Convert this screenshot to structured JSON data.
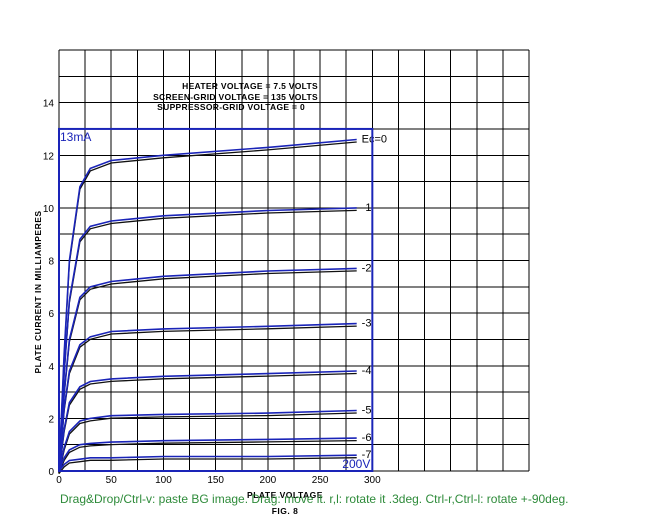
{
  "app": {
    "help_text": "Drag&Drop/Ctrl-v: paste BG image. Drag: move it. r,l: rotate it .3deg. Ctrl-r,Ctrl-l: rotate +-90deg."
  },
  "colors": {
    "overlay_blue": "#1a24b8",
    "help_green": "#2e8b3a",
    "ink": "#111111"
  },
  "chart_data": {
    "type": "line",
    "title": "",
    "caption_lines": [
      "HEATER VOLTAGE = 7.5 VOLTS",
      "SCREEN-GRID VOLTAGE = 135 VOLTS",
      "SUPPRESSOR-GRID VOLTAGE = 0"
    ],
    "figure_label": "FIG. 8",
    "xlabel": "PLATE VOLTAGE",
    "ylabel": "PLATE CURRENT IN MILLIAMPERES",
    "xlim": [
      0,
      450
    ],
    "ylim": [
      0,
      16
    ],
    "x_ticks": [
      "0",
      "50",
      "100",
      "150",
      "200",
      "250",
      "300"
    ],
    "y_ticks": [
      "0",
      "2",
      "4",
      "6",
      "8",
      "10",
      "12",
      "14"
    ],
    "grid": true,
    "series": [
      {
        "name": "Ec = 0",
        "label": "Ec=0",
        "x": [
          0,
          5,
          10,
          20,
          30,
          50,
          100,
          200,
          285
        ],
        "y": [
          0,
          4.5,
          8.0,
          10.8,
          11.5,
          11.8,
          12.0,
          12.3,
          12.6
        ]
      },
      {
        "name": "-1",
        "label": "-1",
        "x": [
          0,
          5,
          10,
          20,
          30,
          50,
          100,
          200,
          285
        ],
        "y": [
          0,
          3.8,
          6.5,
          8.8,
          9.3,
          9.5,
          9.7,
          9.9,
          10.0
        ]
      },
      {
        "name": "-2",
        "label": "-2",
        "x": [
          0,
          5,
          10,
          20,
          30,
          50,
          100,
          200,
          285
        ],
        "y": [
          0,
          3.0,
          5.0,
          6.6,
          7.0,
          7.2,
          7.4,
          7.6,
          7.7
        ]
      },
      {
        "name": "-3",
        "label": "-3",
        "x": [
          0,
          5,
          10,
          20,
          30,
          50,
          100,
          200,
          285
        ],
        "y": [
          0,
          2.4,
          3.8,
          4.8,
          5.1,
          5.3,
          5.4,
          5.5,
          5.6
        ]
      },
      {
        "name": "-4",
        "label": "-4",
        "x": [
          0,
          5,
          10,
          20,
          30,
          50,
          100,
          200,
          285
        ],
        "y": [
          0,
          1.6,
          2.6,
          3.2,
          3.4,
          3.5,
          3.6,
          3.7,
          3.8
        ]
      },
      {
        "name": "-5",
        "label": "-5",
        "x": [
          0,
          5,
          10,
          20,
          30,
          50,
          100,
          200,
          285
        ],
        "y": [
          0,
          0.9,
          1.5,
          1.9,
          2.0,
          2.1,
          2.15,
          2.2,
          2.3
        ]
      },
      {
        "name": "-6",
        "label": "-6",
        "x": [
          0,
          5,
          10,
          20,
          30,
          50,
          100,
          200,
          285
        ],
        "y": [
          0,
          0.5,
          0.8,
          1.0,
          1.05,
          1.1,
          1.15,
          1.2,
          1.25
        ]
      },
      {
        "name": "-7",
        "label": "-7",
        "x": [
          0,
          5,
          10,
          20,
          30,
          50,
          100,
          200,
          285
        ],
        "y": [
          0,
          0.25,
          0.4,
          0.45,
          0.5,
          0.5,
          0.55,
          0.55,
          0.6
        ]
      }
    ],
    "overlay": {
      "box_x": [
        0,
        300
      ],
      "box_y": [
        0,
        13
      ],
      "top_label": "13mA",
      "right_label": "200V"
    }
  }
}
